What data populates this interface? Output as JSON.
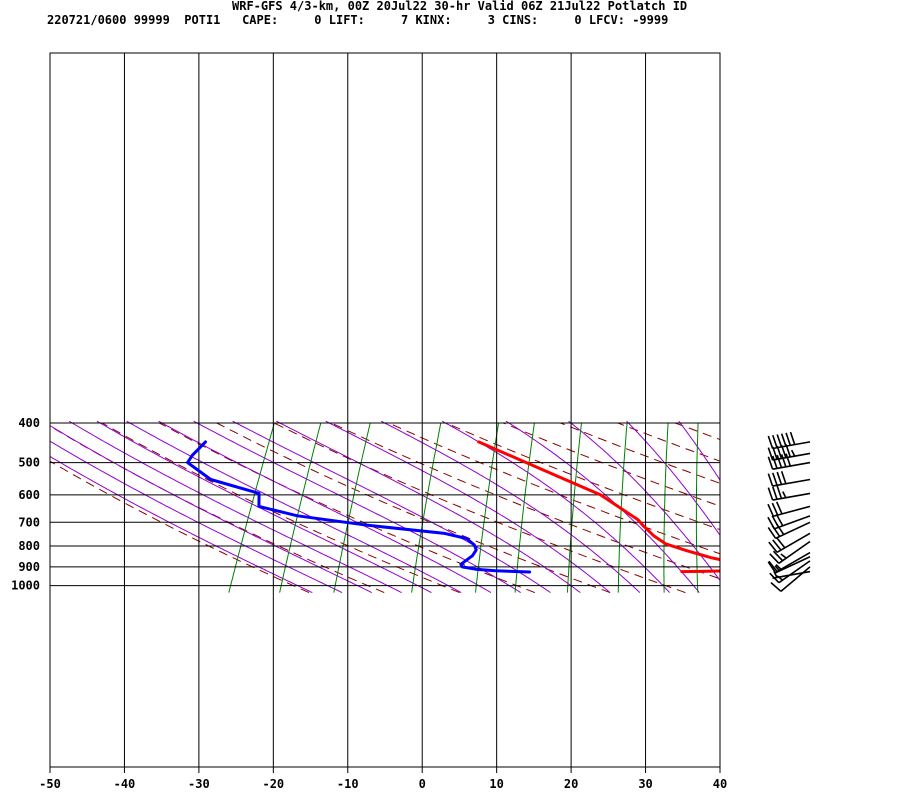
{
  "header": {
    "title": "WRF-GFS 4/3-km, 00Z 20Jul22 30-hr Valid 06Z 21Jul22 Potlatch ID",
    "info": "220721/0600 99999  POTI1   CAPE:     0 LIFT:     7 KINX:     3 CINS:     0 LFCV: -9999"
  },
  "chart_data": {
    "type": "line",
    "subtype": "skew-T log-p sounding",
    "x_axis": {
      "label": "",
      "unit": "°C",
      "range": [
        -50,
        40
      ],
      "ticks": [
        "-50",
        "-40",
        "-30",
        "-20",
        "-10",
        "0",
        "10",
        "20",
        "30",
        "40"
      ]
    },
    "y_axis": {
      "label": "",
      "unit": "hPa",
      "scale": "log",
      "range": [
        1035,
        400
      ],
      "ticks": [
        "400",
        "500",
        "600",
        "700",
        "800",
        "900",
        "1000"
      ]
    },
    "grid": true,
    "series": [
      {
        "name": "",
        "color": "#ff0000",
        "points": [
          {
            "p": 924,
            "t": 17.8
          },
          {
            "p": 923,
            "t": 20.3
          },
          {
            "p": 921,
            "t": 22.9
          },
          {
            "p": 917,
            "t": 24.9
          },
          {
            "p": 911,
            "t": 25.6
          },
          {
            "p": 902,
            "t": 25.8
          },
          {
            "p": 888,
            "t": 25.0
          },
          {
            "p": 875,
            "t": 23.6
          },
          {
            "p": 855,
            "t": 20.6
          },
          {
            "p": 820,
            "t": 16.5
          },
          {
            "p": 790,
            "t": 13.2
          },
          {
            "p": 755,
            "t": 10.9
          },
          {
            "p": 715,
            "t": 8.7
          },
          {
            "p": 690,
            "t": 7.4
          },
          {
            "p": 600,
            "t": 0.2
          },
          {
            "p": 540,
            "t": -7.2
          },
          {
            "p": 500,
            "t": -12.6
          },
          {
            "p": 445,
            "t": -20.8
          }
        ]
      },
      {
        "name": "",
        "color": "#0000ff",
        "points": [
          {
            "p": 926,
            "t": -2.6
          },
          {
            "p": 920,
            "t": -7.3
          },
          {
            "p": 912,
            "t": -10.1
          },
          {
            "p": 900,
            "t": -12.1
          },
          {
            "p": 887,
            "t": -12.5
          },
          {
            "p": 870,
            "t": -12.2
          },
          {
            "p": 845,
            "t": -11.7
          },
          {
            "p": 818,
            "t": -11.7
          },
          {
            "p": 795,
            "t": -12.4
          },
          {
            "p": 767,
            "t": -14.0
          },
          {
            "p": 745,
            "t": -17.4
          },
          {
            "p": 712,
            "t": -28.4
          },
          {
            "p": 675,
            "t": -38.7
          },
          {
            "p": 640,
            "t": -44.7
          },
          {
            "p": 595,
            "t": -45.8
          },
          {
            "p": 550,
            "t": -53.5
          },
          {
            "p": 500,
            "t": -58.1
          },
          {
            "p": 480,
            "t": -58.1
          },
          {
            "p": 445,
            "t": -57.5
          }
        ]
      }
    ],
    "background_lines": {
      "isotherm_color": "#000000",
      "isobar_color": "#000000",
      "dry_adiabat_color": "#8b0000",
      "moist_adiabat_color": "#9400d3",
      "mixing_ratio_color": "#008000"
    },
    "wind_barbs": {
      "color": "#000000",
      "barbs": [
        {
          "p": 445,
          "dir": 260,
          "speed": 60
        },
        {
          "p": 475,
          "dir": 260,
          "speed": 55
        },
        {
          "p": 500,
          "dir": 260,
          "speed": 50
        },
        {
          "p": 550,
          "dir": 260,
          "speed": 40
        },
        {
          "p": 595,
          "dir": 260,
          "speed": 35
        },
        {
          "p": 640,
          "dir": 255,
          "speed": 30
        },
        {
          "p": 675,
          "dir": 250,
          "speed": 30
        },
        {
          "p": 700,
          "dir": 245,
          "speed": 30
        },
        {
          "p": 745,
          "dir": 240,
          "speed": 30
        },
        {
          "p": 780,
          "dir": 235,
          "speed": 25
        },
        {
          "p": 830,
          "dir": 240,
          "speed": 15
        },
        {
          "p": 850,
          "dir": 245,
          "speed": 15
        },
        {
          "p": 870,
          "dir": 235,
          "speed": 15
        },
        {
          "p": 900,
          "dir": 230,
          "speed": 10
        },
        {
          "p": 924,
          "dir": 260,
          "speed": 5
        }
      ]
    }
  }
}
